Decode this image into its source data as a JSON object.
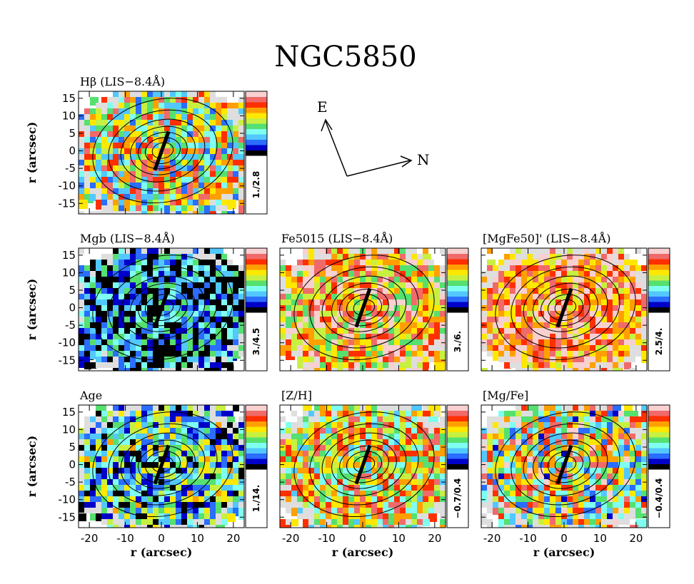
{
  "chart_data": {
    "type": "heatmap",
    "title": "NGC5850",
    "xlabel": "r (arcsec)",
    "ylabel": "r (arcsec)",
    "xlim": [
      -23,
      23
    ],
    "ylim": [
      -18,
      17
    ],
    "xticks": [
      -20,
      -10,
      0,
      10,
      20
    ],
    "yticks": [
      -15,
      -10,
      -5,
      0,
      5,
      10,
      15
    ],
    "colorbar_colors": [
      "#000000",
      "#0000c8",
      "#2a6dff",
      "#52c8ff",
      "#7ffff0",
      "#55e070",
      "#c8f040",
      "#ffe800",
      "#ffa000",
      "#ff3000",
      "#f06a6a",
      "#f8d0d0"
    ],
    "compass": {
      "east_label": "E",
      "north_label": "N"
    },
    "panels": [
      {
        "label": "Hβ (LIS−8.4Å)",
        "range": "1./2.8",
        "mean": 0.55,
        "spread": 0.35
      },
      {
        "label": "Mgb (LIS−8.4Å)",
        "range": "3./4.5",
        "mean": 0.2,
        "spread": 0.3
      },
      {
        "label": "Fe5015 (LIS−8.4Å)",
        "range": "3./6.",
        "mean": 0.72,
        "spread": 0.3
      },
      {
        "label": "[MgFe50]' (LIS−8.4Å)",
        "range": "2.5/4.",
        "mean": 0.8,
        "spread": 0.25
      },
      {
        "label": "Age",
        "range": "1./14.",
        "mean": 0.35,
        "spread": 0.35
      },
      {
        "label": "[Z/H]",
        "range": "−0.7/0.4",
        "mean": 0.6,
        "spread": 0.3
      },
      {
        "label": "[Mg/Fe]",
        "range": "−0.4/0.4",
        "mean": 0.55,
        "spread": 0.4
      }
    ]
  }
}
